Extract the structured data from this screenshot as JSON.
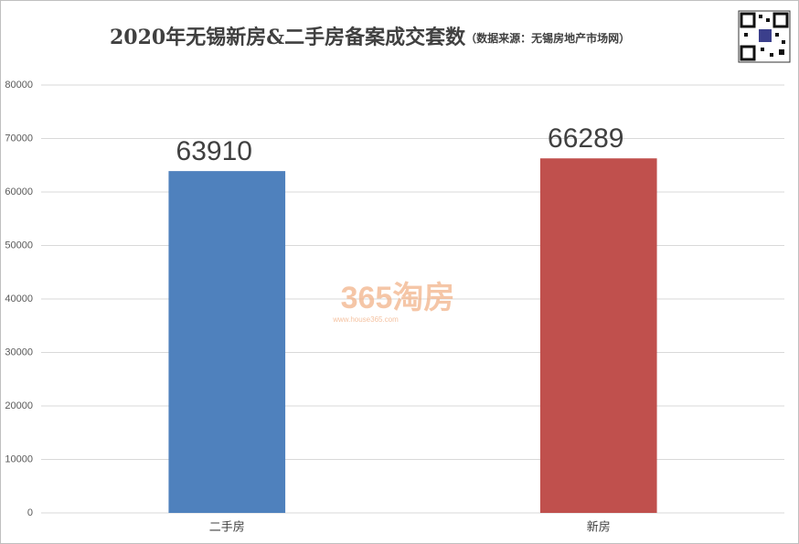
{
  "chart_data": {
    "type": "bar",
    "title": "2020年无锡新房&二手房备案成交套数",
    "subtitle": "（数据来源：无锡房地产市场网）",
    "watermark": "365淘房",
    "watermark_url": "www.house365.com",
    "categories": [
      "二手房",
      "新房"
    ],
    "values": [
      63910,
      66289
    ],
    "colors": [
      "#4f81bd",
      "#c0504d"
    ],
    "ylim": [
      0,
      80000
    ],
    "yticks": [
      0,
      10000,
      20000,
      30000,
      40000,
      50000,
      60000,
      70000,
      80000
    ],
    "grid": true
  }
}
